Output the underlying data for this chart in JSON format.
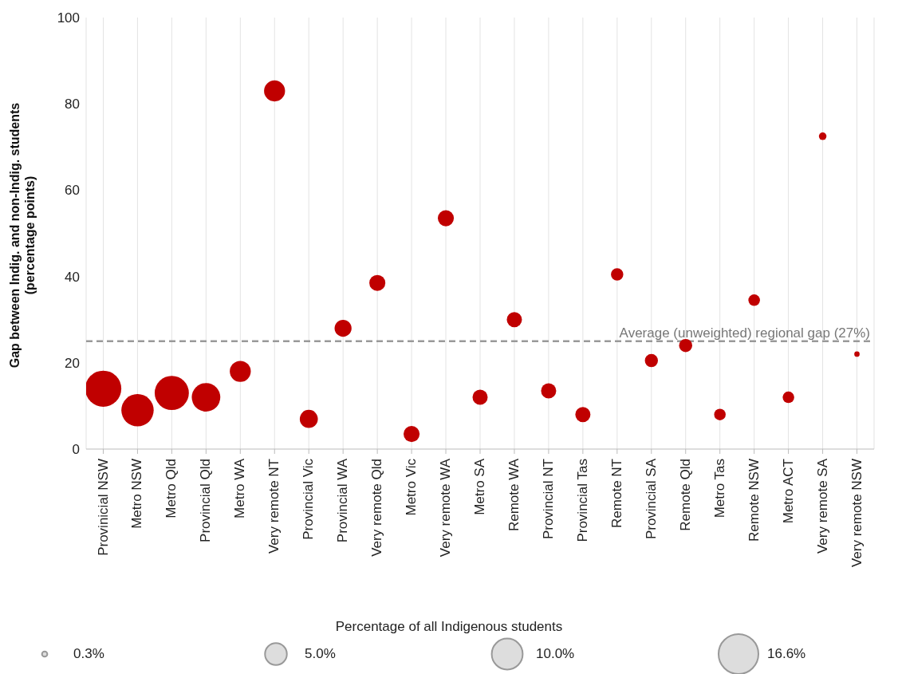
{
  "chart_data": {
    "type": "bubble",
    "ylabel": "Gap between Indig. and non-Indig. students (percentage points)",
    "legend_title": "Percentage of all Indigenous students",
    "categories": [
      "Provinicial NSW",
      "Metro NSW",
      "Metro Qld",
      "Provincial Qld",
      "Metro WA",
      "Very remote NT",
      "Provincial Vic",
      "Provincial WA",
      "Very remote Qld",
      "Metro Vic",
      "Very remote WA",
      "Metro SA",
      "Remote WA",
      "Provincial NT",
      "Provincial Tas",
      "Remote NT",
      "Provincial SA",
      "Remote Qld",
      "Metro Tas",
      "Remote NSW",
      "Metro ACT",
      "Very remote SA",
      "Very remote NSW"
    ],
    "series": [
      {
        "color": "#c00000",
        "values": [
          14,
          9,
          13,
          12,
          18,
          83,
          7,
          28,
          38.5,
          3.5,
          53.5,
          12,
          30,
          13.5,
          8,
          40.5,
          20.5,
          24,
          8,
          34.5,
          12,
          72.5,
          22
        ],
        "sizes": [
          13.6,
          10.9,
          12.2,
          8.5,
          4.6,
          4.6,
          3.4,
          3,
          2.7,
          2.7,
          2.7,
          2.4,
          2.4,
          2.4,
          2.4,
          1.6,
          1.8,
          1.8,
          1.4,
          1.4,
          1.4,
          0.6,
          0.3
        ]
      }
    ],
    "size_legend": [
      {
        "value": 0.3,
        "label": "0.3%"
      },
      {
        "value": 5,
        "label": "5.0%"
      },
      {
        "value": 10,
        "label": "10.0%"
      },
      {
        "value": 16.6,
        "label": "16.6%"
      }
    ],
    "ylim": [
      0,
      100
    ],
    "yticks": [
      0,
      20,
      40,
      60,
      80,
      100
    ],
    "grid": "x",
    "marker": "circle",
    "ref_lines": [
      {
        "axis": "y",
        "value": 25,
        "label": "Average (unweighted) regional gap (27%)",
        "color": "#999999",
        "line_style": "dashed"
      }
    ]
  }
}
